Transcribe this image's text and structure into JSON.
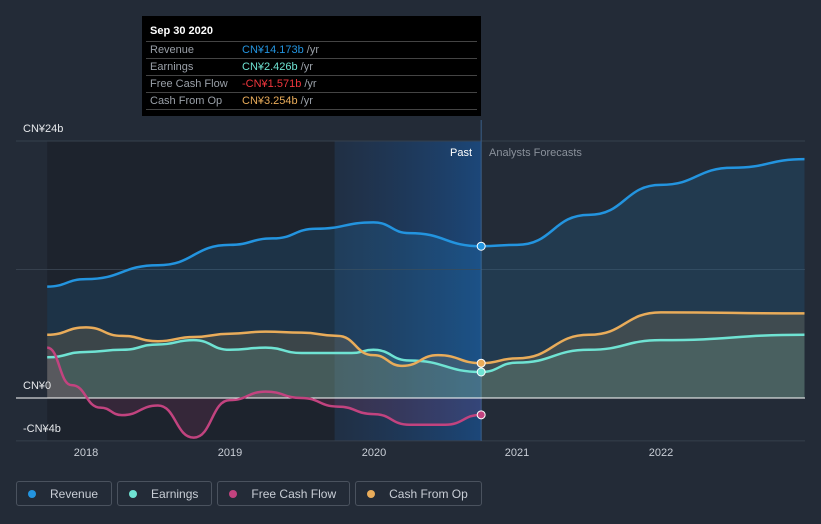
{
  "tooltip": {
    "date": "Sep 30 2020",
    "rows": [
      {
        "label": "Revenue",
        "value": "CN¥14.173b",
        "unit": "/yr",
        "color": "#2394df"
      },
      {
        "label": "Earnings",
        "value": "CN¥2.426b",
        "unit": "/yr",
        "color": "#6fe3d3"
      },
      {
        "label": "Free Cash Flow",
        "value": "-CN¥1.571b",
        "unit": "/yr",
        "color": "#f0363d"
      },
      {
        "label": "Cash From Op",
        "value": "CN¥3.254b",
        "unit": "/yr",
        "color": "#e9ac5a"
      }
    ]
  },
  "chart_data": {
    "type": "line",
    "y_tick_labels": [
      "CN¥24b",
      "CN¥0",
      "-CN¥4b"
    ],
    "ylim": [
      -4,
      24
    ],
    "x_tick_labels": [
      "2018",
      "2019",
      "2020",
      "2021",
      "2022"
    ],
    "xlim": [
      2017.6,
      2023.0
    ],
    "past_label": "Past",
    "forecast_label": "Analysts Forecasts",
    "past_end": 2020.75,
    "shade_start": 2019.73,
    "series": [
      {
        "name": "Revenue",
        "color": "#2394df",
        "points": [
          [
            2017.73,
            10.4
          ],
          [
            2018,
            11.1
          ],
          [
            2018.5,
            12.4
          ],
          [
            2019,
            14.3
          ],
          [
            2019.3,
            14.9
          ],
          [
            2019.6,
            15.8
          ],
          [
            2020,
            16.4
          ],
          [
            2020.25,
            15.4
          ],
          [
            2020.75,
            14.17
          ],
          [
            2021,
            14.3
          ],
          [
            2021.5,
            17.1
          ],
          [
            2022,
            19.9
          ],
          [
            2022.5,
            21.5
          ],
          [
            2023,
            22.3
          ]
        ]
      },
      {
        "name": "Earnings",
        "color": "#6fe3d3",
        "points": [
          [
            2017.73,
            3.8
          ],
          [
            2018,
            4.3
          ],
          [
            2018.25,
            4.5
          ],
          [
            2018.5,
            5.0
          ],
          [
            2018.75,
            5.4
          ],
          [
            2019,
            4.5
          ],
          [
            2019.25,
            4.7
          ],
          [
            2019.5,
            4.2
          ],
          [
            2019.85,
            4.2
          ],
          [
            2020,
            4.5
          ],
          [
            2020.25,
            3.5
          ],
          [
            2020.75,
            2.43
          ],
          [
            2021,
            3.3
          ],
          [
            2021.5,
            4.5
          ],
          [
            2022,
            5.4
          ],
          [
            2023,
            5.9
          ]
        ]
      },
      {
        "name": "Free Cash Flow",
        "color": "#c2437f",
        "points": [
          [
            2017.73,
            4.7
          ],
          [
            2017.9,
            1.2
          ],
          [
            2018.1,
            -0.9
          ],
          [
            2018.25,
            -1.6
          ],
          [
            2018.5,
            -0.7
          ],
          [
            2018.75,
            -3.7
          ],
          [
            2019,
            -0.2
          ],
          [
            2019.25,
            0.6
          ],
          [
            2019.5,
            0
          ],
          [
            2019.75,
            -0.8
          ],
          [
            2020,
            -1.5
          ],
          [
            2020.25,
            -2.5
          ],
          [
            2020.5,
            -2.5
          ],
          [
            2020.75,
            -1.57
          ]
        ]
      },
      {
        "name": "Cash From Op",
        "color": "#e9ac5a",
        "points": [
          [
            2017.73,
            5.9
          ],
          [
            2018,
            6.6
          ],
          [
            2018.25,
            5.8
          ],
          [
            2018.5,
            5.3
          ],
          [
            2018.75,
            5.7
          ],
          [
            2019,
            6.0
          ],
          [
            2019.25,
            6.2
          ],
          [
            2019.5,
            6.1
          ],
          [
            2019.75,
            5.8
          ],
          [
            2020,
            4.0
          ],
          [
            2020.2,
            3.0
          ],
          [
            2020.45,
            4.0
          ],
          [
            2020.75,
            3.25
          ],
          [
            2021,
            3.7
          ],
          [
            2021.5,
            5.9
          ],
          [
            2022,
            8.0
          ],
          [
            2023,
            7.9
          ]
        ]
      }
    ]
  }
}
